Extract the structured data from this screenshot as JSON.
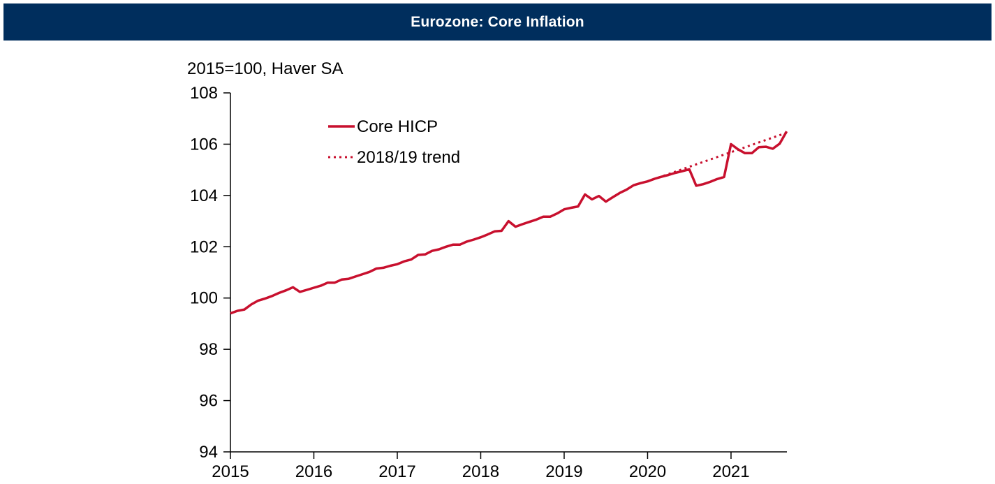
{
  "header": {
    "title": "Eurozone: Core Inflation"
  },
  "colors": {
    "banner_bg": "#002e5d",
    "series": "#c8102e",
    "axis": "#000000"
  },
  "chart_data": {
    "type": "line",
    "title": "Eurozone: Core Inflation",
    "ylabel": "2015=100, Haver SA",
    "xlabel": "",
    "ylim": [
      94,
      108
    ],
    "yticks": [
      94,
      96,
      98,
      100,
      102,
      104,
      106,
      108
    ],
    "xlim": [
      2015,
      2021.67
    ],
    "xticks": [
      2015,
      2016,
      2017,
      2018,
      2019,
      2020,
      2021
    ],
    "legend": "top-left",
    "series": [
      {
        "name": "Core HICP",
        "style": "solid",
        "x": [
          2015.0,
          2015.083,
          2015.167,
          2015.25,
          2015.333,
          2015.417,
          2015.5,
          2015.583,
          2015.667,
          2015.75,
          2015.833,
          2015.917,
          2016.0,
          2016.083,
          2016.167,
          2016.25,
          2016.333,
          2016.417,
          2016.5,
          2016.583,
          2016.667,
          2016.75,
          2016.833,
          2016.917,
          2017.0,
          2017.083,
          2017.167,
          2017.25,
          2017.333,
          2017.417,
          2017.5,
          2017.583,
          2017.667,
          2017.75,
          2017.833,
          2017.917,
          2018.0,
          2018.083,
          2018.167,
          2018.25,
          2018.333,
          2018.417,
          2018.5,
          2018.583,
          2018.667,
          2018.75,
          2018.833,
          2018.917,
          2019.0,
          2019.083,
          2019.167,
          2019.25,
          2019.333,
          2019.417,
          2019.5,
          2019.583,
          2019.667,
          2019.75,
          2019.833,
          2019.917,
          2020.0,
          2020.083,
          2020.167,
          2020.25,
          2020.333,
          2020.417,
          2020.5,
          2020.583,
          2020.667,
          2020.75,
          2020.833,
          2020.917,
          2021.0,
          2021.083,
          2021.167,
          2021.25,
          2021.333,
          2021.417,
          2021.5,
          2021.583,
          2021.667
        ],
        "values": [
          99.4,
          99.5,
          99.55,
          99.75,
          99.9,
          99.98,
          100.08,
          100.2,
          100.3,
          100.42,
          100.24,
          100.32,
          100.4,
          100.48,
          100.6,
          100.6,
          100.72,
          100.75,
          100.84,
          100.93,
          101.02,
          101.15,
          101.18,
          101.26,
          101.32,
          101.43,
          101.5,
          101.68,
          101.7,
          101.84,
          101.9,
          102.0,
          102.08,
          102.08,
          102.2,
          102.28,
          102.37,
          102.48,
          102.6,
          102.62,
          103.0,
          102.78,
          102.88,
          102.97,
          103.06,
          103.17,
          103.17,
          103.3,
          103.46,
          103.52,
          103.57,
          104.04,
          103.85,
          103.98,
          103.76,
          103.93,
          104.1,
          104.23,
          104.4,
          104.48,
          104.55,
          104.65,
          104.73,
          104.8,
          104.88,
          104.95,
          105.02,
          104.38,
          104.44,
          104.53,
          104.64,
          104.72,
          106.0,
          105.8,
          105.65,
          105.65,
          105.88,
          105.9,
          105.82,
          106.02,
          106.5
        ]
      },
      {
        "name": "2018/19 trend",
        "style": "dotted",
        "x": [
          2020.0,
          2021.67
        ],
        "values": [
          104.55,
          106.45
        ]
      }
    ]
  }
}
